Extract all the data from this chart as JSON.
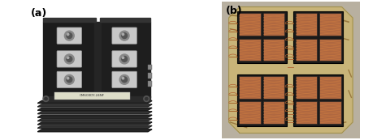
{
  "figsize": [
    4.81,
    1.73
  ],
  "dpi": 100,
  "background_color": "#ffffff",
  "label_a": "(a)",
  "label_b": "(b)",
  "label_fontsize": 9,
  "label_fontweight": "bold",
  "panel_a_bg": "#f0f0f0",
  "panel_b_bg": "#c8b8a0",
  "igbt_body_color": "#1a1a1a",
  "igbt_fin_color": "#2a2a2a",
  "igbt_terminal_color": "#d0d0d0",
  "igbt_top_color": "#1e1e1e",
  "dbc_bg": "#c8b478",
  "dbc_chip_color": "#b06840",
  "dbc_border_color": "#111111",
  "dbc_wire_color": "#a05820",
  "dbc_trace_color": "#9a7a40",
  "gray_bg": "#b0b0b0"
}
